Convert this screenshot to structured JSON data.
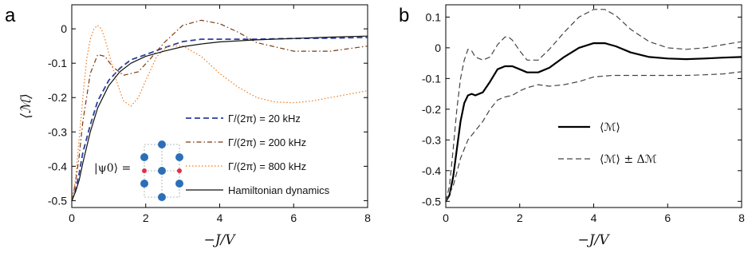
{
  "figure": {
    "panel_a_label": "a",
    "panel_b_label": "b",
    "inset_label": "|ψ0⟩ ="
  },
  "chart_data": [
    {
      "type": "line",
      "panel": "a",
      "title": "",
      "xlabel": "−J/V",
      "ylabel": "⟨ℳ⟩",
      "xlim": [
        0,
        8
      ],
      "ylim": [
        -0.52,
        0.07
      ],
      "xticks": [
        0,
        2,
        4,
        6,
        8
      ],
      "yticks": [
        0,
        -0.1,
        -0.2,
        -0.3,
        -0.4,
        -0.5
      ],
      "ytick_labels": [
        "0",
        "-0.1",
        "-0.2",
        "-0.3",
        "-0.4",
        "-0.5"
      ],
      "grid": false,
      "legend_placement": "bottom-right",
      "series": [
        {
          "name": "Γ/(2π) = 20 kHz",
          "color": "#2a3f9e",
          "style": "dashed",
          "x": [
            0,
            0.1,
            0.2,
            0.3,
            0.5,
            0.7,
            1.0,
            1.3,
            1.6,
            2.0,
            2.5,
            3.0,
            3.5,
            4.0,
            5.0,
            6.0,
            7.0,
            8.0
          ],
          "y": [
            -0.5,
            -0.47,
            -0.42,
            -0.36,
            -0.28,
            -0.21,
            -0.15,
            -0.115,
            -0.09,
            -0.075,
            -0.055,
            -0.037,
            -0.03,
            -0.03,
            -0.03,
            -0.028,
            -0.027,
            -0.025
          ]
        },
        {
          "name": "Γ/(2π) = 200 kHz",
          "color": "#7a3a12",
          "style": "dashdot",
          "x": [
            0,
            0.1,
            0.2,
            0.3,
            0.5,
            0.7,
            0.9,
            1.1,
            1.4,
            1.8,
            2.1,
            2.5,
            3.0,
            3.5,
            4.0,
            4.5,
            5.0,
            6.0,
            7.0,
            8.0
          ],
          "y": [
            -0.5,
            -0.45,
            -0.37,
            -0.27,
            -0.13,
            -0.075,
            -0.08,
            -0.11,
            -0.135,
            -0.125,
            -0.09,
            -0.04,
            0.01,
            0.025,
            0.015,
            -0.01,
            -0.04,
            -0.065,
            -0.065,
            -0.05
          ]
        },
        {
          "name": "Γ/(2π) = 800 kHz",
          "color": "#f07a1a",
          "style": "dotted",
          "x": [
            0,
            0.1,
            0.2,
            0.3,
            0.4,
            0.5,
            0.6,
            0.7,
            0.8,
            0.9,
            1.0,
            1.2,
            1.4,
            1.6,
            1.8,
            2.0,
            2.3,
            2.6,
            3.0,
            3.5,
            4.0,
            4.5,
            5.0,
            5.5,
            6.0,
            6.5,
            7.0,
            7.5,
            8.0
          ],
          "y": [
            -0.5,
            -0.44,
            -0.32,
            -0.2,
            -0.09,
            -0.03,
            0.0,
            0.01,
            0.0,
            -0.03,
            -0.07,
            -0.15,
            -0.21,
            -0.225,
            -0.2,
            -0.15,
            -0.08,
            -0.05,
            -0.05,
            -0.08,
            -0.13,
            -0.17,
            -0.2,
            -0.213,
            -0.215,
            -0.21,
            -0.2,
            -0.19,
            -0.18
          ]
        },
        {
          "name": "Hamiltonian dynamics",
          "color": "#111111",
          "style": "solid",
          "x": [
            0,
            0.1,
            0.2,
            0.3,
            0.5,
            0.7,
            1.0,
            1.3,
            1.6,
            2.0,
            2.5,
            3.0,
            3.5,
            4.0,
            5.0,
            6.0,
            7.0,
            8.0
          ],
          "y": [
            -0.5,
            -0.475,
            -0.44,
            -0.39,
            -0.3,
            -0.23,
            -0.165,
            -0.125,
            -0.1,
            -0.08,
            -0.065,
            -0.052,
            -0.044,
            -0.038,
            -0.032,
            -0.028,
            -0.024,
            -0.021
          ]
        }
      ]
    },
    {
      "type": "line",
      "panel": "b",
      "title": "",
      "xlabel": "−J/V",
      "ylabel": "",
      "xlim": [
        0,
        8
      ],
      "ylim": [
        -0.52,
        0.14
      ],
      "xticks": [
        0,
        2,
        4,
        6,
        8
      ],
      "yticks": [
        0.1,
        0,
        -0.1,
        -0.2,
        -0.3,
        -0.4,
        -0.5
      ],
      "ytick_labels": [
        "0.1",
        "0",
        "-0.1",
        "-0.2",
        "-0.3",
        "-0.4",
        "-0.5"
      ],
      "grid": false,
      "legend_placement": "center-right",
      "series": [
        {
          "name": "⟨ℳ⟩",
          "color": "#000000",
          "style": "solid",
          "x": [
            0,
            0.1,
            0.2,
            0.3,
            0.4,
            0.5,
            0.6,
            0.7,
            0.8,
            1.0,
            1.2,
            1.4,
            1.6,
            1.8,
            2.0,
            2.2,
            2.5,
            2.8,
            3.2,
            3.6,
            4.0,
            4.3,
            4.6,
            5.0,
            5.5,
            6.0,
            6.5,
            7.0,
            7.5,
            8.0
          ],
          "y": [
            -0.5,
            -0.48,
            -0.42,
            -0.33,
            -0.24,
            -0.18,
            -0.155,
            -0.15,
            -0.155,
            -0.145,
            -0.11,
            -0.07,
            -0.06,
            -0.06,
            -0.07,
            -0.08,
            -0.08,
            -0.065,
            -0.03,
            0.0,
            0.015,
            0.015,
            0.005,
            -0.015,
            -0.03,
            -0.035,
            -0.037,
            -0.035,
            -0.032,
            -0.03
          ]
        },
        {
          "name": "⟨ℳ⟩ ± Δℳ",
          "color": "#444444",
          "style": "dashed",
          "x": [
            0,
            0.1,
            0.2,
            0.3,
            0.4,
            0.5,
            0.6,
            0.7,
            0.8,
            1.0,
            1.2,
            1.4,
            1.6,
            1.7,
            1.8,
            2.0,
            2.2,
            2.5,
            2.8,
            3.2,
            3.6,
            4.0,
            4.3,
            4.6,
            5.0,
            5.5,
            6.0,
            6.5,
            7.0,
            7.5,
            8.0
          ],
          "y": [
            -0.5,
            -0.45,
            -0.33,
            -0.2,
            -0.1,
            -0.04,
            -0.005,
            -0.01,
            -0.03,
            -0.04,
            -0.03,
            0.01,
            0.035,
            0.035,
            0.025,
            -0.01,
            -0.04,
            -0.04,
            -0.005,
            0.05,
            0.1,
            0.125,
            0.125,
            0.105,
            0.06,
            0.02,
            0.0,
            -0.005,
            0.0,
            0.01,
            0.02
          ]
        },
        {
          "name": "",
          "color": "#444444",
          "style": "dashed",
          "x": [
            0,
            0.2,
            0.4,
            0.6,
            0.8,
            1.0,
            1.2,
            1.4,
            1.6,
            1.8,
            2.0,
            2.2,
            2.5,
            2.8,
            3.2,
            3.6,
            4.0,
            4.5,
            5.0,
            5.5,
            6.0,
            6.5,
            7.0,
            7.5,
            8.0
          ],
          "y": [
            -0.5,
            -0.45,
            -0.36,
            -0.3,
            -0.27,
            -0.24,
            -0.2,
            -0.17,
            -0.16,
            -0.155,
            -0.14,
            -0.13,
            -0.12,
            -0.125,
            -0.12,
            -0.11,
            -0.095,
            -0.09,
            -0.09,
            -0.09,
            -0.09,
            -0.09,
            -0.088,
            -0.085,
            -0.078
          ]
        }
      ]
    }
  ]
}
